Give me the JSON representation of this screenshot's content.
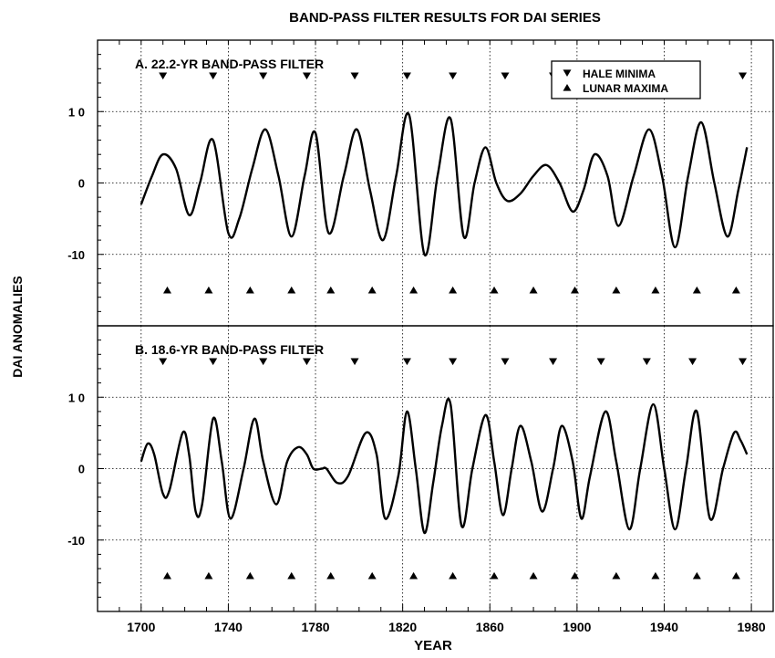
{
  "chart_data": {
    "type": "line",
    "title": "BAND-PASS FILTER RESULTS FOR DAI SERIES",
    "xlabel": "YEAR",
    "ylabel": "DAI ANOMALIES",
    "xlim": [
      1680,
      1990
    ],
    "xticks": [
      1700,
      1740,
      1780,
      1820,
      1860,
      1900,
      1940,
      1980
    ],
    "grid": true,
    "legend_placement": "top-right",
    "legend": [
      {
        "label": "HALE MINIMA",
        "marker": "triangle-down"
      },
      {
        "label": "LUNAR MAXIMA",
        "marker": "triangle-up"
      }
    ],
    "panels": [
      {
        "id": "A",
        "title": "A.  22.2-YR BAND-PASS FILTER",
        "ylim": [
          -20,
          20
        ],
        "yticks": [
          {
            "value": 10,
            "label": "1 0"
          },
          {
            "value": 0,
            "label": "0"
          },
          {
            "value": -10,
            "label": "-10"
          }
        ],
        "series": [
          {
            "x": [
              1700,
              1705,
              1710,
              1716,
              1722,
              1727,
              1733,
              1740,
              1745,
              1751,
              1757,
              1763,
              1769,
              1775,
              1780,
              1786,
              1793,
              1799,
              1805,
              1811,
              1817,
              1823,
              1830,
              1836,
              1842,
              1848,
              1853,
              1858,
              1863,
              1868,
              1874,
              1880,
              1886,
              1892,
              1898,
              1903,
              1908,
              1914,
              1919,
              1926,
              1933,
              1939,
              1945,
              1951,
              1957,
              1963,
              1969,
              1974,
              1978
            ],
            "y": [
              -3,
              1,
              4,
              2,
              -4.5,
              0,
              6,
              -7,
              -5,
              2,
              7.5,
              1,
              -7.5,
              1,
              7,
              -7,
              1,
              7.5,
              -1,
              -8,
              1,
              9.5,
              -10,
              1,
              9,
              -7.5,
              0,
              5,
              0,
              -2.5,
              -1.5,
              1,
              2.5,
              0,
              -4,
              -1,
              4,
              1,
              -6,
              1,
              7.5,
              1,
              -9,
              1,
              8.5,
              0,
              -7.5,
              -1,
              5
            ]
          }
        ],
        "hale_minima": [
          1710,
          1733,
          1756,
          1776,
          1798,
          1822,
          1843,
          1867,
          1889,
          1911,
          1932,
          1953,
          1976
        ],
        "lunar_maxima": [
          1712,
          1731,
          1750,
          1769,
          1787,
          1806,
          1825,
          1843,
          1862,
          1880,
          1899,
          1918,
          1936,
          1955,
          1973
        ]
      },
      {
        "id": "B",
        "title": "B.  18.6-YR BAND-PASS FILTER",
        "ylim": [
          -20,
          20
        ],
        "yticks": [
          {
            "value": 10,
            "label": "1 0"
          },
          {
            "value": 0,
            "label": "0"
          },
          {
            "value": -10,
            "label": "-10"
          }
        ],
        "series": [
          {
            "x": [
              1700,
              1703,
              1706,
              1710,
              1713,
              1719,
              1722,
              1725,
              1728,
              1733,
              1737,
              1741,
              1747,
              1752,
              1756,
              1762,
              1767,
              1772,
              1776,
              1779,
              1783,
              1785,
              1790,
              1795,
              1803,
              1808,
              1812,
              1818,
              1822,
              1826,
              1830,
              1834,
              1838,
              1842,
              1847,
              1852,
              1858,
              1862,
              1866,
              1870,
              1874,
              1879,
              1884,
              1889,
              1893,
              1898,
              1902,
              1906,
              1913,
              1918,
              1924,
              1929,
              1935,
              1940,
              1945,
              1950,
              1955,
              1961,
              1967,
              1972,
              1975,
              1978
            ],
            "y": [
              1,
              3.5,
              2,
              -3.5,
              -3,
              5,
              2,
              -6,
              -5,
              7,
              1,
              -7,
              0,
              7,
              1,
              -5,
              1,
              3,
              2,
              0,
              0,
              0,
              -2,
              -1,
              5,
              2,
              -7,
              -1,
              8,
              0,
              -9,
              -2,
              6,
              9,
              -8,
              0,
              7.5,
              1,
              -6.5,
              0,
              6,
              1,
              -6,
              0,
              6,
              1,
              -7,
              -1,
              8,
              1,
              -8.5,
              0,
              9,
              0,
              -8.5,
              0,
              8,
              -7,
              0,
              5,
              4,
              2
            ]
          }
        ],
        "hale_minima": [
          1710,
          1733,
          1756,
          1776,
          1798,
          1822,
          1843,
          1867,
          1889,
          1911,
          1932,
          1953,
          1976
        ],
        "lunar_maxima": [
          1712,
          1731,
          1750,
          1769,
          1787,
          1806,
          1825,
          1843,
          1862,
          1880,
          1899,
          1918,
          1936,
          1955,
          1973
        ]
      }
    ]
  }
}
